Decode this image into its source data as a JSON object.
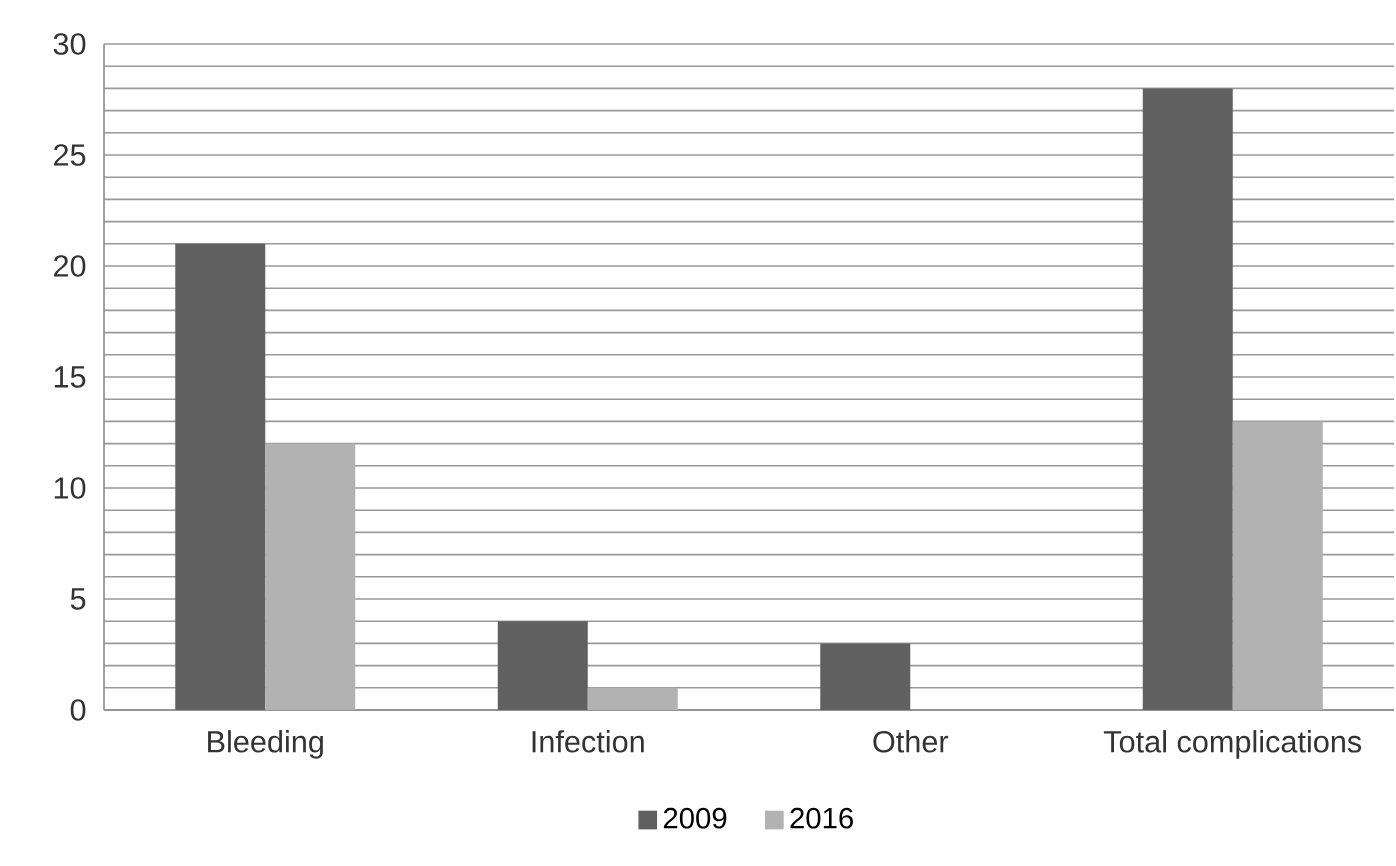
{
  "chart_data": {
    "type": "bar",
    "categories": [
      "Bleeding",
      "Infection",
      "Other",
      "Total complications"
    ],
    "series": [
      {
        "name": "2009",
        "color": "#606060",
        "values": [
          21,
          4,
          3,
          28
        ]
      },
      {
        "name": "2016",
        "color": "#b2b2b2",
        "values": [
          12,
          1,
          0,
          13
        ]
      }
    ],
    "ylim": [
      0,
      30
    ],
    "yticks": [
      0,
      {
        "value": 1,
        "label": null
      },
      {
        "value": 2,
        "label": null
      },
      {
        "value": 3,
        "label": null
      },
      {
        "value": 4,
        "label": null
      },
      5,
      {
        "value": 6,
        "label": null
      },
      {
        "value": 7,
        "label": null
      },
      {
        "value": 8,
        "label": null
      },
      {
        "value": 9,
        "label": null
      },
      10,
      {
        "value": 11,
        "label": null
      },
      {
        "value": 12,
        "label": null
      },
      {
        "value": 13,
        "label": null
      },
      {
        "value": 14,
        "label": null
      },
      15,
      {
        "value": 16,
        "label": null
      },
      {
        "value": 17,
        "label": null
      },
      {
        "value": 18,
        "label": null
      },
      {
        "value": 19,
        "label": null
      },
      20,
      {
        "value": 21,
        "label": null
      },
      {
        "value": 22,
        "label": null
      },
      {
        "value": 23,
        "label": null
      },
      {
        "value": 24,
        "label": null
      },
      25,
      {
        "value": 26,
        "label": null
      },
      {
        "value": 27,
        "label": null
      },
      {
        "value": 28,
        "label": null
      },
      {
        "value": 29,
        "label": null
      },
      30
    ],
    "grid": "y",
    "legend": "bottom"
  }
}
